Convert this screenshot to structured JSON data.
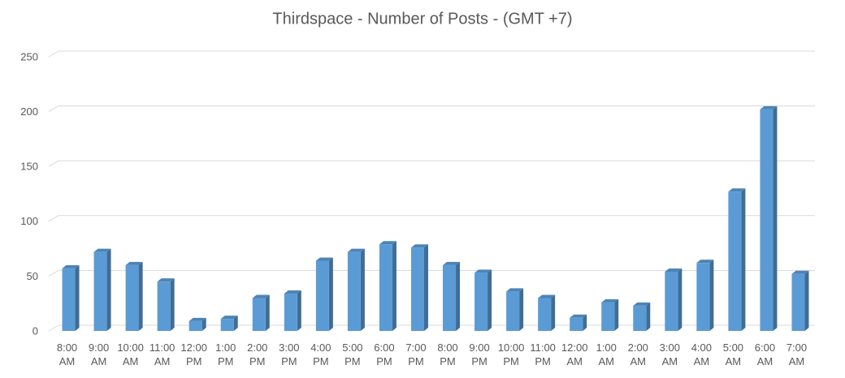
{
  "chart_data": {
    "type": "bar",
    "title": "Thirdspace - Number of Posts - (GMT +7)",
    "categories": [
      "8:00 AM",
      "9:00 AM",
      "10:00 AM",
      "11:00 AM",
      "12:00 PM",
      "1:00 PM",
      "2:00 PM",
      "3:00 PM",
      "4:00 PM",
      "5:00 PM",
      "6:00 PM",
      "7:00 PM",
      "8:00 PM",
      "9:00 PM",
      "10:00 PM",
      "11:00 PM",
      "12:00 AM",
      "1:00 AM",
      "2:00 AM",
      "3:00 AM",
      "4:00 AM",
      "5:00 AM",
      "6:00 AM",
      "7:00 AM"
    ],
    "values": [
      57,
      72,
      60,
      45,
      9,
      11,
      30,
      34,
      64,
      72,
      79,
      76,
      60,
      53,
      36,
      30,
      12,
      26,
      23,
      54,
      62,
      127,
      202,
      52
    ],
    "color": "#5b9bd5",
    "ylim": [
      0,
      250
    ],
    "yticks": [
      0,
      50,
      100,
      150,
      200,
      250
    ],
    "grid": true
  }
}
